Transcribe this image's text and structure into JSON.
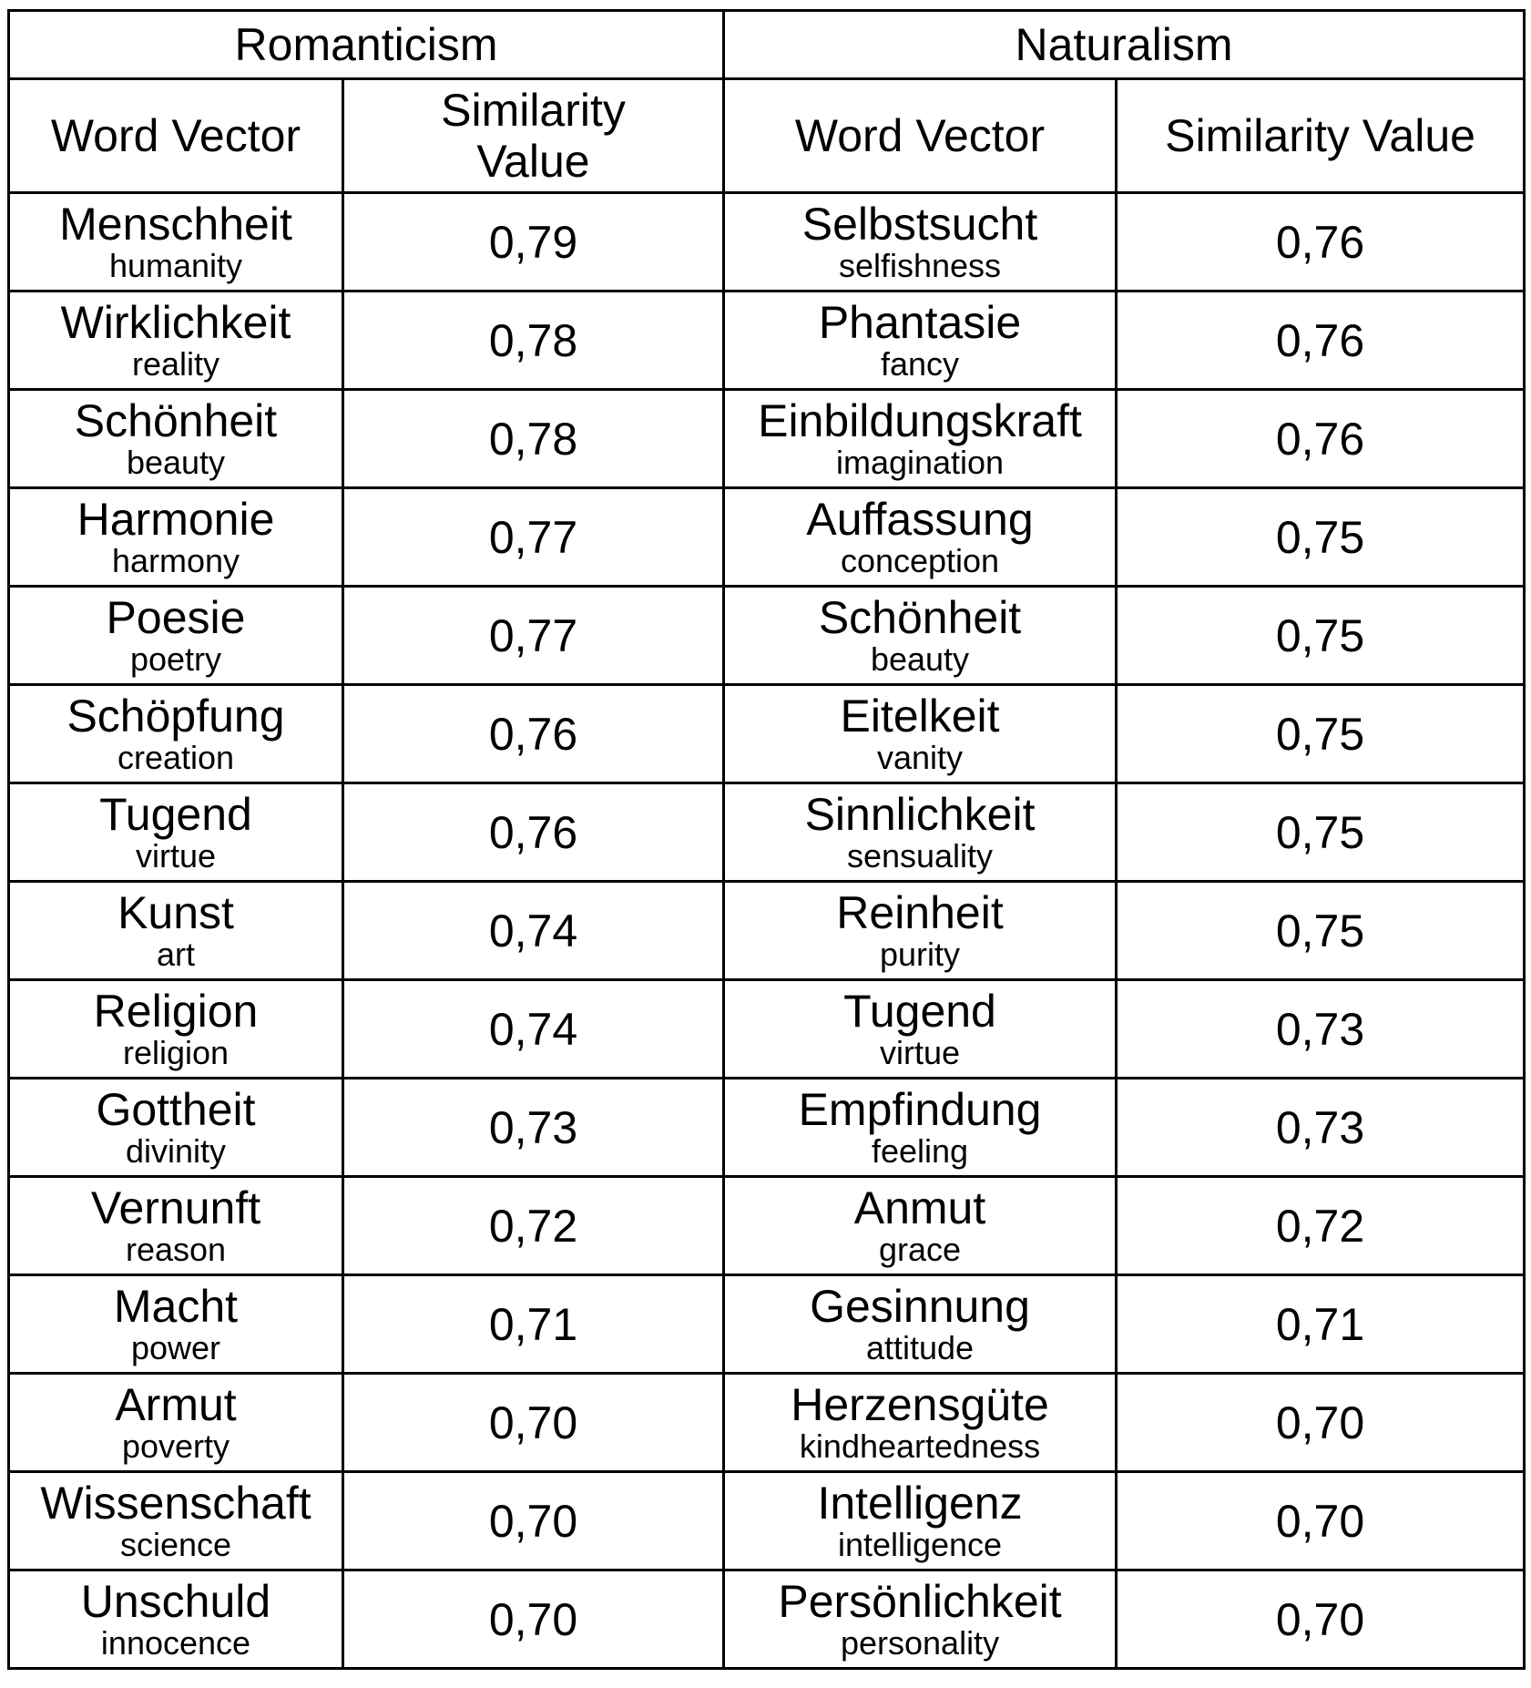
{
  "groups": {
    "romanticism": "Romanticism",
    "naturalism": "Naturalism"
  },
  "headers": {
    "word_vector": "Word Vector",
    "similarity_value": "Similarity Value"
  },
  "rows": [
    {
      "r_de": "Menschheit",
      "r_en": "humanity",
      "r_val": "0,79",
      "n_de": "Selbstsucht",
      "n_en": "selfishness",
      "n_val": "0,76"
    },
    {
      "r_de": "Wirklichkeit",
      "r_en": "reality",
      "r_val": "0,78",
      "n_de": "Phantasie",
      "n_en": "fancy",
      "n_val": "0,76"
    },
    {
      "r_de": "Schönheit",
      "r_en": "beauty",
      "r_val": "0,78",
      "n_de": "Einbildungskraft",
      "n_en": "imagination",
      "n_val": "0,76"
    },
    {
      "r_de": "Harmonie",
      "r_en": "harmony",
      "r_val": "0,77",
      "n_de": "Auffassung",
      "n_en": "conception",
      "n_val": "0,75"
    },
    {
      "r_de": "Poesie",
      "r_en": "poetry",
      "r_val": "0,77",
      "n_de": "Schönheit",
      "n_en": "beauty",
      "n_val": "0,75"
    },
    {
      "r_de": "Schöpfung",
      "r_en": "creation",
      "r_val": "0,76",
      "n_de": "Eitelkeit",
      "n_en": "vanity",
      "n_val": "0,75"
    },
    {
      "r_de": "Tugend",
      "r_en": "virtue",
      "r_val": "0,76",
      "n_de": "Sinnlichkeit",
      "n_en": "sensuality",
      "n_val": "0,75"
    },
    {
      "r_de": "Kunst",
      "r_en": "art",
      "r_val": "0,74",
      "n_de": "Reinheit",
      "n_en": "purity",
      "n_val": "0,75"
    },
    {
      "r_de": "Religion",
      "r_en": "religion",
      "r_val": "0,74",
      "n_de": "Tugend",
      "n_en": "virtue",
      "n_val": "0,73"
    },
    {
      "r_de": "Gottheit",
      "r_en": "divinity",
      "r_val": "0,73",
      "n_de": "Empfindung",
      "n_en": "feeling",
      "n_val": "0,73"
    },
    {
      "r_de": "Vernunft",
      "r_en": "reason",
      "r_val": "0,72",
      "n_de": "Anmut",
      "n_en": "grace",
      "n_val": "0,72"
    },
    {
      "r_de": "Macht",
      "r_en": "power",
      "r_val": "0,71",
      "n_de": "Gesinnung",
      "n_en": "attitude",
      "n_val": "0,71"
    },
    {
      "r_de": "Armut",
      "r_en": "poverty",
      "r_val": "0,70",
      "n_de": "Herzensgüte",
      "n_en": "kindheartedness",
      "n_val": "0,70"
    },
    {
      "r_de": "Wissenschaft",
      "r_en": "science",
      "r_val": "0,70",
      "n_de": "Intelligenz",
      "n_en": "intelligence",
      "n_val": "0,70"
    },
    {
      "r_de": "Unschuld",
      "r_en": "innocence",
      "r_val": "0,70",
      "n_de": "Persönlichkeit",
      "n_en": "personality",
      "n_val": "0,70"
    }
  ]
}
